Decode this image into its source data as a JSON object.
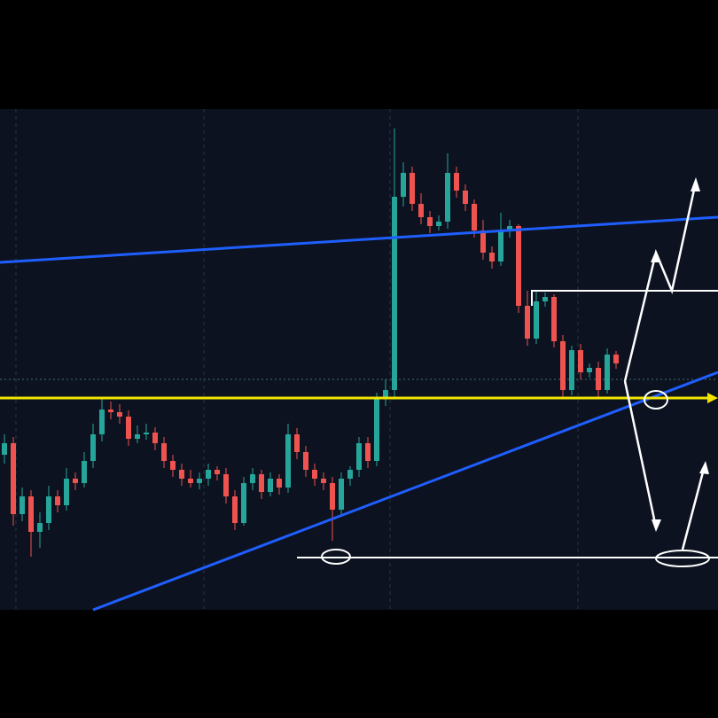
{
  "chart_data": {
    "type": "candlestick",
    "ylim": [
      0,
      563
    ],
    "up_color": "#26a69a",
    "down_color": "#ef5350",
    "open": [
      175,
      188,
      108,
      128,
      88,
      98,
      128,
      118,
      148,
      143,
      168,
      198,
      226,
      223,
      218,
      193,
      198,
      200,
      188,
      168,
      158,
      148,
      143,
      148,
      158,
      153,
      128,
      98,
      143,
      153,
      133,
      148,
      138,
      198,
      178,
      158,
      148,
      143,
      113,
      148,
      158,
      188,
      168,
      238,
      248,
      466,
      493,
      458,
      443,
      433,
      438,
      493,
      473,
      458,
      428,
      403,
      393,
      428,
      433,
      343,
      306,
      348,
      353,
      303,
      248,
      293,
      268,
      273,
      248,
      288
    ],
    "high": [
      198,
      195,
      138,
      135,
      110,
      140,
      135,
      160,
      155,
      178,
      210,
      240,
      235,
      232,
      225,
      208,
      210,
      206,
      195,
      175,
      165,
      158,
      155,
      165,
      162,
      160,
      135,
      150,
      160,
      158,
      155,
      153,
      210,
      205,
      185,
      165,
      155,
      150,
      155,
      162,
      195,
      195,
      245,
      260,
      543,
      505,
      500,
      470,
      450,
      445,
      515,
      500,
      480,
      463,
      440,
      410,
      448,
      440,
      435,
      360,
      360,
      358,
      356,
      310,
      298,
      300,
      278,
      280,
      295,
      292
    ],
    "low": [
      165,
      95,
      100,
      60,
      70,
      90,
      110,
      112,
      135,
      138,
      160,
      190,
      215,
      210,
      185,
      188,
      192,
      180,
      160,
      150,
      140,
      138,
      136,
      140,
      146,
      120,
      90,
      95,
      135,
      125,
      128,
      130,
      132,
      170,
      150,
      140,
      135,
      78,
      105,
      140,
      150,
      160,
      162,
      230,
      240,
      455,
      450,
      435,
      425,
      428,
      430,
      465,
      450,
      420,
      395,
      385,
      388,
      420,
      335,
      298,
      300,
      342,
      296,
      240,
      242,
      260,
      262,
      240,
      244,
      272
    ],
    "close": [
      188,
      108,
      128,
      88,
      98,
      128,
      118,
      148,
      143,
      168,
      198,
      226,
      223,
      218,
      193,
      198,
      200,
      188,
      168,
      158,
      148,
      143,
      148,
      158,
      153,
      128,
      98,
      143,
      153,
      133,
      148,
      138,
      198,
      178,
      158,
      148,
      143,
      113,
      148,
      158,
      188,
      168,
      238,
      248,
      466,
      493,
      458,
      443,
      433,
      438,
      493,
      473,
      458,
      428,
      403,
      393,
      428,
      433,
      343,
      306,
      348,
      353,
      303,
      248,
      293,
      268,
      273,
      248,
      288,
      278
    ]
  }
}
